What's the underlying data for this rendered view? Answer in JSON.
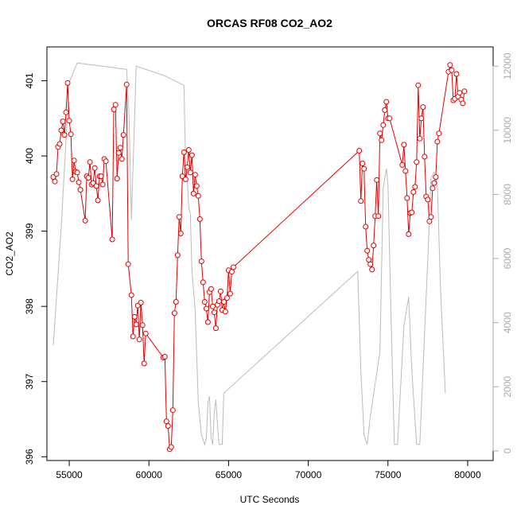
{
  "colors": {
    "primary": "#e00000",
    "secondary": "#bbbbbb",
    "axis": "#000000",
    "secondary_axis": "#aaaaaa"
  },
  "chart_data": {
    "type": "line",
    "title": "ORCAS RF08 CO2_AO2",
    "xlabel": "UTC Seconds",
    "ylabel": "CO2_AO2",
    "xlim": [
      53600,
      81600
    ],
    "ylim": [
      395.95,
      401.45
    ],
    "y2lim": [
      -300,
      12600
    ],
    "x_ticks": [
      55000,
      60000,
      65000,
      70000,
      75000,
      80000
    ],
    "y_ticks": [
      396,
      397,
      398,
      399,
      400,
      401
    ],
    "y2_ticks": [
      0,
      2000,
      4000,
      6000,
      8000,
      10000,
      12000
    ],
    "grid": false,
    "legend": "none",
    "series": [
      {
        "type": "line+points",
        "color": "#e00000",
        "marker": "open-circle",
        "points": [
          [
            54000,
            399.72
          ],
          [
            54100,
            399.66
          ],
          [
            54200,
            399.76
          ],
          [
            54300,
            400.12
          ],
          [
            54400,
            400.16
          ],
          [
            54500,
            400.34
          ],
          [
            54600,
            400.46
          ],
          [
            54700,
            400.28
          ],
          [
            54800,
            400.58
          ],
          [
            54900,
            400.97
          ],
          [
            55000,
            400.47
          ],
          [
            55100,
            400.29
          ],
          [
            55200,
            399.69
          ],
          [
            55300,
            399.94
          ],
          [
            55400,
            399.79
          ],
          [
            55500,
            399.78
          ],
          [
            55600,
            399.65
          ],
          [
            55700,
            399.55
          ],
          [
            56000,
            399.14
          ],
          [
            56100,
            399.73
          ],
          [
            56200,
            399.71
          ],
          [
            56300,
            399.92
          ],
          [
            56400,
            399.62
          ],
          [
            56500,
            399.64
          ],
          [
            56600,
            399.84
          ],
          [
            56700,
            399.6
          ],
          [
            56800,
            399.41
          ],
          [
            56900,
            399.73
          ],
          [
            57000,
            399.73
          ],
          [
            57100,
            399.62
          ],
          [
            57200,
            399.96
          ],
          [
            57300,
            399.93
          ],
          [
            57700,
            398.89
          ],
          [
            57800,
            400.62
          ],
          [
            57900,
            400.68
          ],
          [
            58000,
            399.7
          ],
          [
            58100,
            400.04
          ],
          [
            58200,
            400.11
          ],
          [
            58300,
            399.96
          ],
          [
            58400,
            400.28
          ],
          [
            58600,
            400.95
          ],
          [
            58700,
            398.56
          ],
          [
            58900,
            398.15
          ],
          [
            59000,
            397.6
          ],
          [
            59100,
            397.86
          ],
          [
            59200,
            397.76
          ],
          [
            59300,
            398.01
          ],
          [
            59400,
            397.56
          ],
          [
            59500,
            398.05
          ],
          [
            59600,
            397.75
          ],
          [
            59700,
            397.24
          ],
          [
            59800,
            397.64
          ],
          [
            60900,
            397.32
          ],
          [
            61000,
            397.33
          ],
          [
            61100,
            396.47
          ],
          [
            61200,
            396.41
          ],
          [
            61300,
            396.1
          ],
          [
            61400,
            396.13
          ],
          [
            61500,
            396.62
          ],
          [
            61600,
            397.91
          ],
          [
            61700,
            398.06
          ],
          [
            61800,
            398.68
          ],
          [
            61900,
            399.19
          ],
          [
            62000,
            398.97
          ],
          [
            62100,
            399.73
          ],
          [
            62200,
            400.05
          ],
          [
            62300,
            399.69
          ],
          [
            62400,
            399.85
          ],
          [
            62500,
            400.08
          ],
          [
            62600,
            399.78
          ],
          [
            62700,
            400.01
          ],
          [
            62800,
            399.5
          ],
          [
            62900,
            399.75
          ],
          [
            63000,
            399.6
          ],
          [
            63100,
            399.47
          ],
          [
            63200,
            399.16
          ],
          [
            63300,
            398.6
          ],
          [
            63400,
            398.32
          ],
          [
            63500,
            398.06
          ],
          [
            63600,
            397.97
          ],
          [
            63700,
            397.79
          ],
          [
            63800,
            398.19
          ],
          [
            63900,
            398.23
          ],
          [
            64000,
            398.0
          ],
          [
            64100,
            397.92
          ],
          [
            64200,
            397.71
          ],
          [
            64300,
            398.02
          ],
          [
            64400,
            398.07
          ],
          [
            64500,
            398.2
          ],
          [
            64600,
            397.95
          ],
          [
            64700,
            398.06
          ],
          [
            64800,
            397.93
          ],
          [
            64900,
            398.11
          ],
          [
            65000,
            398.48
          ],
          [
            65100,
            398.17
          ],
          [
            65200,
            398.46
          ],
          [
            65300,
            398.52
          ],
          [
            73200,
            400.07
          ],
          [
            73300,
            399.4
          ],
          [
            73400,
            399.9
          ],
          [
            73500,
            399.83
          ],
          [
            73600,
            399.06
          ],
          [
            73700,
            398.74
          ],
          [
            73800,
            398.62
          ],
          [
            73900,
            398.56
          ],
          [
            74000,
            398.49
          ],
          [
            74100,
            398.81
          ],
          [
            74200,
            399.2
          ],
          [
            74300,
            399.68
          ],
          [
            74400,
            399.2
          ],
          [
            74500,
            400.3
          ],
          [
            74600,
            400.21
          ],
          [
            74700,
            400.41
          ],
          [
            74800,
            400.61
          ],
          [
            74900,
            400.72
          ],
          [
            75000,
            400.5
          ],
          [
            75100,
            400.5
          ],
          [
            75900,
            399.88
          ],
          [
            76000,
            400.15
          ],
          [
            76100,
            399.8
          ],
          [
            76200,
            399.44
          ],
          [
            76300,
            398.96
          ],
          [
            76400,
            399.24
          ],
          [
            76500,
            399.25
          ],
          [
            76600,
            399.52
          ],
          [
            76700,
            399.59
          ],
          [
            76800,
            399.92
          ],
          [
            76900,
            400.94
          ],
          [
            77000,
            400.23
          ],
          [
            77100,
            400.5
          ],
          [
            77200,
            400.65
          ],
          [
            77300,
            399.99
          ],
          [
            77400,
            399.46
          ],
          [
            77500,
            399.42
          ],
          [
            77600,
            399.13
          ],
          [
            77700,
            399.19
          ],
          [
            77800,
            399.57
          ],
          [
            77900,
            399.64
          ],
          [
            78000,
            399.72
          ],
          [
            78100,
            400.19
          ],
          [
            78200,
            400.3
          ],
          [
            78800,
            401.12
          ],
          [
            78900,
            401.21
          ],
          [
            79000,
            401.14
          ],
          [
            79100,
            400.74
          ],
          [
            79200,
            400.76
          ],
          [
            79300,
            401.09
          ],
          [
            79400,
            400.79
          ],
          [
            79500,
            400.84
          ],
          [
            79600,
            400.75
          ],
          [
            79700,
            400.7
          ],
          [
            79800,
            400.86
          ]
        ]
      },
      {
        "type": "line",
        "axis": "secondary",
        "color": "#bbbbbb",
        "points": [
          [
            54000,
            3300
          ],
          [
            54500,
            7000
          ],
          [
            55000,
            11500
          ],
          [
            55500,
            12100
          ],
          [
            58600,
            11900
          ],
          [
            58750,
            10500
          ],
          [
            58900,
            7200
          ],
          [
            59200,
            12000
          ],
          [
            61000,
            11700
          ],
          [
            62200,
            11400
          ],
          [
            62300,
            9000
          ],
          [
            62400,
            8500
          ],
          [
            62500,
            7600
          ],
          [
            62600,
            7400
          ],
          [
            62700,
            5600
          ],
          [
            62900,
            4400
          ],
          [
            63000,
            3000
          ],
          [
            63100,
            1500
          ],
          [
            63300,
            500
          ],
          [
            63500,
            200
          ],
          [
            63600,
            400
          ],
          [
            63700,
            1500
          ],
          [
            63800,
            1700
          ],
          [
            63900,
            400
          ],
          [
            64000,
            200
          ],
          [
            64100,
            1200
          ],
          [
            64200,
            1600
          ],
          [
            64300,
            800
          ],
          [
            64400,
            200
          ],
          [
            64600,
            200
          ],
          [
            64700,
            1800
          ],
          [
            73100,
            5600
          ],
          [
            73300,
            2500
          ],
          [
            73500,
            500
          ],
          [
            73700,
            200
          ],
          [
            73900,
            1100
          ],
          [
            74500,
            3100
          ],
          [
            74700,
            8200
          ],
          [
            74900,
            8800
          ],
          [
            75000,
            8300
          ],
          [
            75200,
            4000
          ],
          [
            75400,
            200
          ],
          [
            75600,
            200
          ],
          [
            76000,
            3900
          ],
          [
            76300,
            4800
          ],
          [
            76500,
            2500
          ],
          [
            76800,
            200
          ],
          [
            77000,
            200
          ],
          [
            77500,
            6000
          ],
          [
            77700,
            8500
          ],
          [
            77900,
            8700
          ],
          [
            78100,
            8300
          ],
          [
            78300,
            5000
          ],
          [
            78600,
            1800
          ]
        ]
      }
    ]
  }
}
